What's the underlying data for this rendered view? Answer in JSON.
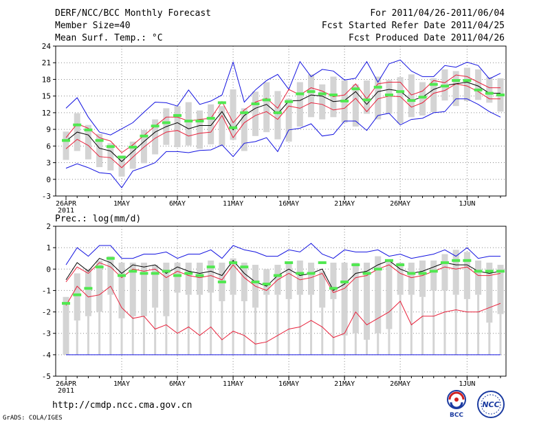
{
  "header": {
    "line1_left": "DERF/NCC/BCC Monthly Forecast",
    "line2_left": "Member Size=40",
    "line3_left": "Mean Surf. Temp.: °C",
    "line1_right": "For 2011/04/26-2011/06/04",
    "line2_right": "Fcst Started Refer Date 2011/04/25",
    "line3_right": "Fcst Produced Date 2011/04/26"
  },
  "footer": {
    "url": "http://cmdp.ncc.cma.gov.cn",
    "credit": "GrADS: COLA/IGES",
    "logo1": "BCC",
    "logo2": "NCC"
  },
  "colors": {
    "box": "#d4d4d4",
    "mean": "#50e850",
    "median": "#000000",
    "inner": "#e8203a",
    "outer": "#1010e0",
    "grid": "#888888"
  },
  "chart_data": [
    {
      "type": "line",
      "title": "Mean Surf. Temp.: °C",
      "x_tick_labels": [
        "26APR",
        "1MAY",
        "6MAY",
        "11MAY",
        "16MAY",
        "21MAY",
        "26MAY",
        "1JUN"
      ],
      "x_tick_days": [
        0,
        5,
        10,
        15,
        20,
        25,
        30,
        36
      ],
      "x_year_label": "2011",
      "n_days": 40,
      "ylim": [
        -3,
        24
      ],
      "y_ticks": [
        -3,
        0,
        3,
        6,
        9,
        12,
        15,
        18,
        21,
        24
      ],
      "series": [
        {
          "name": "box_high",
          "values": [
            8.6,
            11.9,
            9.8,
            8.2,
            6.5,
            4.3,
            6.8,
            8.9,
            10.8,
            12.8,
            13.2,
            13.9,
            12.4,
            13.5,
            13.2,
            16.2,
            12.8,
            15.8,
            17.5,
            15.9,
            14.5,
            17.5,
            18.9,
            17.1,
            18.5,
            17.8,
            17.1,
            17.8,
            18.5,
            17.9,
            18.4,
            18.9,
            17.5,
            18.2,
            19.8,
            19.5,
            20.1,
            19.8,
            18.4,
            18.2
          ]
        },
        {
          "name": "box_low",
          "values": [
            3.5,
            5.1,
            3.6,
            2.2,
            1.6,
            0.5,
            1.9,
            2.9,
            4.5,
            6.2,
            5.8,
            6.1,
            5.5,
            6.3,
            6.0,
            7.1,
            5.1,
            7.8,
            8.5,
            7.2,
            6.8,
            9.5,
            11.2,
            10.8,
            11.2,
            10.2,
            9.5,
            11.8,
            10.8,
            11.8,
            10.1,
            11.2,
            11.5,
            12.1,
            14.2,
            13.2,
            14.1,
            14.3,
            13.8,
            12.2
          ]
        },
        {
          "name": "mean",
          "values": [
            7.0,
            9.8,
            8.9,
            7.0,
            5.9,
            4.0,
            5.8,
            7.8,
            9.6,
            10.2,
            11.5,
            10.5,
            10.5,
            11.0,
            13.8,
            9.3,
            12.0,
            13.6,
            14.3,
            12.0,
            14.0,
            15.4,
            15.8,
            15.4,
            15.2,
            14.1,
            16.3,
            14.3,
            16.6,
            15.2,
            15.8,
            14.2,
            14.8,
            17.1,
            16.8,
            17.8,
            17.8,
            16.1,
            15.5,
            15.2
          ]
        },
        {
          "name": "median",
          "values": [
            6.9,
            8.5,
            8.0,
            5.6,
            5.1,
            3.2,
            5.0,
            6.8,
            8.5,
            9.5,
            10.2,
            9.1,
            9.7,
            9.7,
            12.2,
            8.9,
            11.5,
            12.8,
            13.5,
            11.8,
            14.1,
            14.2,
            15.2,
            15.0,
            14.0,
            14.2,
            15.8,
            13.5,
            15.8,
            16.2,
            15.9,
            14.2,
            14.8,
            16.2,
            16.9,
            17.2,
            17.5,
            16.8,
            15.5,
            15.5
          ]
        },
        {
          "name": "upper_inner",
          "values": [
            7.5,
            10.0,
            9.2,
            7.5,
            6.9,
            4.8,
            6.2,
            7.9,
            9.6,
            11.2,
            11.2,
            10.5,
            10.8,
            11.0,
            14.0,
            10.2,
            12.5,
            13.9,
            14.6,
            12.8,
            16.2,
            15.2,
            16.5,
            15.9,
            14.9,
            15.2,
            17.2,
            14.5,
            17.2,
            17.5,
            17.5,
            15.2,
            15.9,
            17.8,
            17.4,
            18.8,
            18.5,
            17.5,
            16.5,
            16.5
          ]
        },
        {
          "name": "lower_inner",
          "values": [
            5.5,
            7.2,
            6.1,
            4.1,
            3.9,
            2.1,
            4.0,
            5.8,
            7.4,
            8.5,
            8.8,
            7.8,
            8.3,
            8.5,
            11.5,
            7.5,
            10.2,
            11.5,
            12.2,
            10.8,
            13.2,
            12.8,
            13.8,
            13.5,
            12.5,
            12.8,
            14.6,
            12.2,
            14.5,
            15.0,
            14.9,
            13.0,
            13.8,
            15.5,
            16.0,
            17.2,
            16.8,
            15.8,
            14.5,
            14.5
          ]
        },
        {
          "name": "upper_outer",
          "values": [
            12.8,
            14.7,
            11.2,
            8.5,
            8.0,
            9.1,
            10.2,
            12.1,
            13.9,
            13.8,
            13.2,
            16.1,
            13.5,
            14.1,
            15.2,
            21.1,
            13.9,
            16.1,
            17.8,
            18.9,
            16.2,
            21.2,
            18.5,
            19.8,
            19.5,
            17.9,
            18.2,
            21.2,
            17.5,
            20.8,
            21.5,
            19.5,
            18.5,
            18.5,
            20.5,
            20.2,
            21.1,
            20.5,
            18.1,
            19.1
          ]
        },
        {
          "name": "lower_outer",
          "values": [
            2.0,
            2.8,
            2.1,
            1.2,
            1.0,
            -1.5,
            1.5,
            2.2,
            3.0,
            5.0,
            5.0,
            4.8,
            5.2,
            5.3,
            6.2,
            4.1,
            6.5,
            6.8,
            7.5,
            5.0,
            8.9,
            9.2,
            10.0,
            7.8,
            8.1,
            10.5,
            10.5,
            8.8,
            11.5,
            11.9,
            9.8,
            10.8,
            11.0,
            12.0,
            12.2,
            14.5,
            14.5,
            13.5,
            12.2,
            11.2
          ]
        }
      ]
    },
    {
      "type": "line",
      "title": "Prec.: log(mm/d)",
      "x_tick_labels": [
        "26APR",
        "1MAY",
        "6MAY",
        "11MAY",
        "16MAY",
        "21MAY",
        "26MAY",
        "1JUN"
      ],
      "x_tick_days": [
        0,
        5,
        10,
        15,
        20,
        25,
        30,
        36
      ],
      "x_year_label": "2011",
      "n_days": 40,
      "ylim": [
        -5,
        2
      ],
      "y_ticks": [
        -5,
        -4,
        -3,
        -2,
        -1,
        0,
        1,
        2
      ],
      "series": [
        {
          "name": "box_high",
          "values": [
            -1.3,
            -0.2,
            0.0,
            0.4,
            0.6,
            0.3,
            0.3,
            0.3,
            0.2,
            0.3,
            0.3,
            0.3,
            0.3,
            0.4,
            0.3,
            0.5,
            0.3,
            0.2,
            0.0,
            0.2,
            0.3,
            0.4,
            0.3,
            -0.1,
            0.3,
            0.3,
            0.3,
            0.3,
            0.6,
            0.4,
            0.3,
            0.3,
            0.4,
            0.4,
            0.7,
            0.9,
            0.8,
            0.4,
            0.3,
            0.2
          ]
        },
        {
          "name": "box_low",
          "values": [
            -4.0,
            -2.4,
            -2.2,
            -2.0,
            -1.2,
            -2.3,
            -2.2,
            -2.2,
            -1.8,
            -2.2,
            -1.1,
            -1.2,
            -1.2,
            -1.1,
            -1.5,
            -1.2,
            -1.5,
            -1.8,
            -1.2,
            -1.2,
            -1.4,
            -1.2,
            -1.2,
            -1.8,
            -1.4,
            -3.1,
            -3.0,
            -3.3,
            -3.0,
            -2.8,
            -1.2,
            -1.2,
            -1.3,
            -1.0,
            -1.0,
            -1.2,
            -1.4,
            -1.2,
            -2.5,
            -2.1
          ]
        },
        {
          "name": "box_min",
          "values": [
            -4.0,
            -4.0,
            -4.0,
            -4.0,
            -4.0,
            -4.0,
            -4.0,
            -4.0,
            -4.0,
            -4.0,
            -4.0,
            -4.0,
            -4.0,
            -4.0,
            -4.0,
            -4.0,
            -4.0,
            -4.0,
            -4.0,
            -4.0,
            -4.0,
            -4.0,
            -4.0,
            -4.0,
            -4.0,
            -4.0,
            -4.0,
            -4.0,
            -4.0,
            -4.0,
            -4.0,
            -4.0,
            -4.0,
            -4.0,
            -4.0,
            -4.0,
            -4.0,
            -4.0,
            -4.0,
            -4.0
          ]
        },
        {
          "name": "mean",
          "values": [
            -1.6,
            -1.2,
            -0.9,
            0.1,
            0.5,
            -0.3,
            -0.1,
            -0.2,
            -0.2,
            -0.1,
            -0.3,
            -0.2,
            -0.3,
            0.1,
            -0.6,
            0.3,
            0.1,
            -0.6,
            -0.7,
            -0.3,
            0.3,
            -0.2,
            -0.2,
            0.3,
            -0.9,
            -0.6,
            0.2,
            -0.2,
            0.0,
            0.4,
            0.2,
            -0.2,
            -0.2,
            -0.1,
            0.3,
            0.4,
            0.4,
            -0.1,
            -0.1,
            -0.1
          ]
        },
        {
          "name": "median",
          "values": [
            -0.5,
            0.3,
            -0.1,
            0.5,
            0.3,
            -0.2,
            0.2,
            0.1,
            0.2,
            -0.2,
            0.1,
            -0.1,
            -0.2,
            -0.1,
            -0.3,
            0.4,
            -0.2,
            -0.6,
            -0.8,
            -0.3,
            0.0,
            -0.3,
            -0.2,
            0.0,
            -1.0,
            -0.7,
            -0.2,
            -0.1,
            0.2,
            0.4,
            0.0,
            -0.2,
            -0.1,
            0.1,
            0.3,
            0.2,
            0.2,
            -0.1,
            -0.2,
            -0.1
          ]
        },
        {
          "name": "upper_inner",
          "values": [
            -0.6,
            0.1,
            -0.2,
            0.3,
            0.1,
            -0.4,
            0.0,
            -0.1,
            0.0,
            -0.4,
            -0.1,
            -0.3,
            -0.4,
            -0.3,
            -0.5,
            0.2,
            -0.4,
            -0.8,
            -1.0,
            -0.5,
            -0.2,
            -0.5,
            -0.4,
            -0.2,
            -1.1,
            -0.9,
            -0.4,
            -0.3,
            0.0,
            0.2,
            -0.2,
            -0.4,
            -0.3,
            -0.1,
            0.1,
            0.0,
            0.1,
            -0.3,
            -0.3,
            -0.2
          ]
        },
        {
          "name": "lower_inner",
          "values": [
            -1.7,
            -0.8,
            -1.3,
            -1.2,
            -0.8,
            -1.8,
            -2.3,
            -2.2,
            -2.8,
            -2.6,
            -3.0,
            -2.7,
            -3.1,
            -2.7,
            -3.3,
            -2.9,
            -3.1,
            -3.5,
            -3.4,
            -3.1,
            -2.8,
            -2.7,
            -2.4,
            -2.7,
            -3.2,
            -3.0,
            -2.0,
            -2.6,
            -2.3,
            -2.0,
            -1.5,
            -2.6,
            -2.2,
            -2.2,
            -2.0,
            -1.9,
            -2.0,
            -2.0,
            -1.8,
            -1.6
          ]
        },
        {
          "name": "upper_outer",
          "values": [
            0.2,
            1.0,
            0.6,
            1.1,
            1.1,
            0.5,
            0.5,
            0.7,
            0.7,
            0.8,
            0.5,
            0.7,
            0.7,
            0.9,
            0.5,
            1.1,
            0.9,
            0.8,
            0.6,
            0.6,
            0.9,
            0.8,
            1.2,
            0.7,
            0.5,
            0.9,
            0.8,
            0.8,
            0.9,
            0.6,
            0.7,
            0.5,
            0.6,
            0.7,
            0.9,
            0.6,
            1.0,
            0.5,
            0.6,
            0.6
          ]
        },
        {
          "name": "lower_outer",
          "values": [
            -4.0,
            -4.0,
            -4.0,
            -4.0,
            -4.0,
            -4.0,
            -4.0,
            -4.0,
            -4.0,
            -4.0,
            -4.0,
            -4.0,
            -4.0,
            -4.0,
            -4.0,
            -4.0,
            -4.0,
            -4.0,
            -4.0,
            -4.0,
            -4.0,
            -4.0,
            -4.0,
            -4.0,
            -4.0,
            -4.0,
            -4.0,
            -4.0,
            -4.0,
            -4.0,
            -4.0,
            -4.0,
            -4.0,
            -4.0,
            -4.0,
            -4.0,
            -4.0,
            -4.0,
            -4.0,
            -4.0
          ]
        }
      ]
    }
  ]
}
